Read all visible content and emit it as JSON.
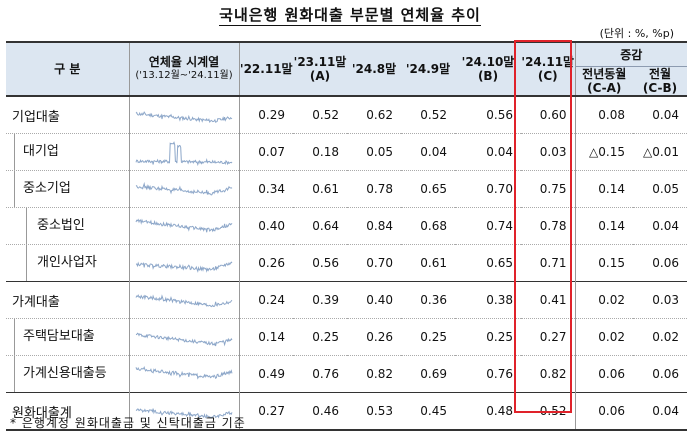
{
  "title": "국내은행 원화대출 부문별 연체율 추이",
  "unit": "(단위 : %, %p)",
  "headers": {
    "category": "구  분",
    "spark_line1": "연체율 시계열",
    "spark_line2": "('13.12월~'24.11월)",
    "c1_line1": "'22.11말",
    "c2_line1": "'23.11말",
    "c2_line2": "(A)",
    "c3_line1": "'24.8말",
    "c4_line1": "'24.9말",
    "c5_line1": "'24.10말",
    "c5_line2": "(B)",
    "c6_line1": "'24.11말",
    "c6_line2": "(C)",
    "change": "증감",
    "yoy_line1": "전년동월",
    "yoy_line2": "(C-A)",
    "mom_line1": "전월",
    "mom_line2": "(C-B)"
  },
  "rows": [
    {
      "label": "기업대출",
      "values": [
        "0.29",
        "0.52",
        "0.62",
        "0.52",
        "0.56",
        "0.60",
        "0.08",
        "0.04"
      ]
    },
    {
      "label": "대기업",
      "values": [
        "0.07",
        "0.18",
        "0.05",
        "0.04",
        "0.04",
        "0.03",
        "△0.15",
        "△0.01"
      ]
    },
    {
      "label": "중소기업",
      "values": [
        "0.34",
        "0.61",
        "0.78",
        "0.65",
        "0.70",
        "0.75",
        "0.14",
        "0.05"
      ]
    },
    {
      "label": "중소법인",
      "values": [
        "0.40",
        "0.64",
        "0.84",
        "0.68",
        "0.74",
        "0.78",
        "0.14",
        "0.04"
      ]
    },
    {
      "label": "개인사업자",
      "values": [
        "0.26",
        "0.56",
        "0.70",
        "0.61",
        "0.65",
        "0.71",
        "0.15",
        "0.06"
      ]
    },
    {
      "label": "가계대출",
      "values": [
        "0.24",
        "0.39",
        "0.40",
        "0.36",
        "0.38",
        "0.41",
        "0.02",
        "0.03"
      ]
    },
    {
      "label": "주택담보대출",
      "values": [
        "0.14",
        "0.25",
        "0.26",
        "0.25",
        "0.25",
        "0.27",
        "0.02",
        "0.02"
      ]
    },
    {
      "label": "가계신용대출등",
      "values": [
        "0.49",
        "0.76",
        "0.82",
        "0.69",
        "0.76",
        "0.82",
        "0.06",
        "0.06"
      ]
    },
    {
      "label": "원화대출계",
      "values": [
        "0.27",
        "0.46",
        "0.53",
        "0.45",
        "0.48",
        "0.52",
        "0.06",
        "0.04"
      ]
    }
  ],
  "sparklines": {
    "line_color": "#8da7c9",
    "shapes": [
      "ent",
      "large",
      "sme",
      "corp",
      "self",
      "house",
      "mortgage",
      "credit",
      "total"
    ]
  },
  "footnote": "* 은행계정 원화대출금 및 신탁대출금 기준",
  "highlight_color": "#e0222a"
}
